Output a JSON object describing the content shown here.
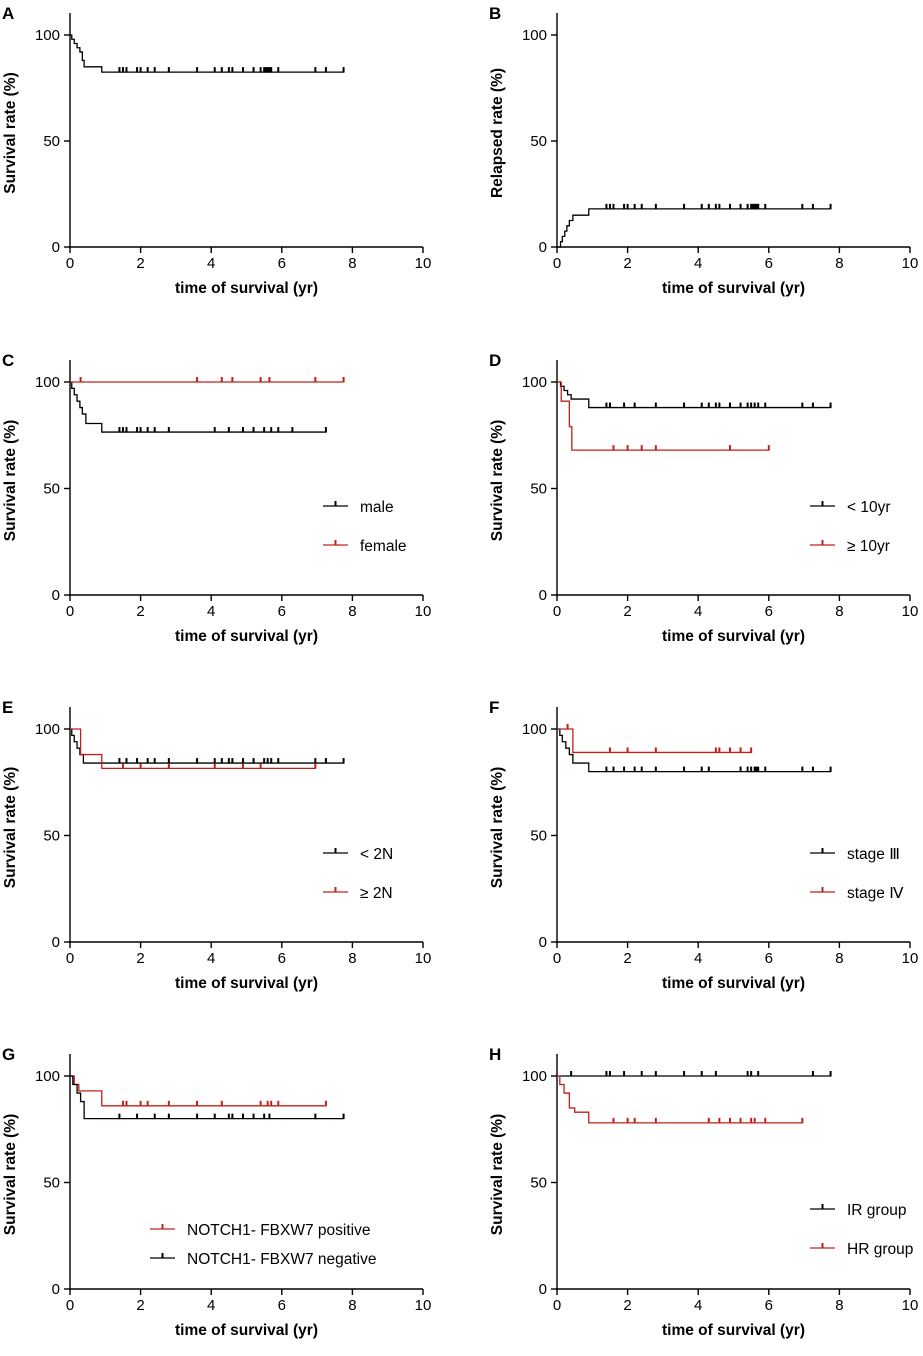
{
  "chart_data": [
    {
      "panel": "A",
      "type": "line",
      "title": "",
      "xlabel": "time of survival (yr)",
      "ylabel": "Survival rate (%)",
      "xlim": [
        0,
        10
      ],
      "ylim": [
        0,
        100
      ],
      "xticks": [
        0,
        2,
        4,
        6,
        8,
        10
      ],
      "yticks": [
        0,
        50,
        100
      ],
      "series": [
        {
          "name": "all",
          "color": "#000000",
          "steps": [
            [
              0,
              100
            ],
            [
              0.05,
              98
            ],
            [
              0.12,
              96
            ],
            [
              0.2,
              94
            ],
            [
              0.28,
              92
            ],
            [
              0.35,
              88
            ],
            [
              0.4,
              85
            ],
            [
              0.9,
              82.5
            ]
          ],
          "end": 7.75,
          "censors": [
            1.4,
            1.5,
            1.6,
            1.9,
            2.0,
            2.2,
            2.4,
            2.8,
            3.6,
            4.1,
            4.3,
            4.5,
            4.6,
            4.9,
            5.2,
            5.4,
            5.5,
            5.55,
            5.6,
            5.65,
            5.7,
            5.9,
            6.95,
            7.25,
            7.75
          ]
        }
      ]
    },
    {
      "panel": "B",
      "type": "line",
      "title": "",
      "xlabel": "time of survival (yr)",
      "ylabel": "Relapsed rate (%)",
      "xlim": [
        0,
        10
      ],
      "ylim": [
        0,
        100
      ],
      "xticks": [
        0,
        2,
        4,
        6,
        8,
        10
      ],
      "yticks": [
        0,
        50,
        100
      ],
      "series": [
        {
          "name": "all",
          "color": "#000000",
          "steps": [
            [
              0,
              0
            ],
            [
              0.1,
              2.5
            ],
            [
              0.15,
              5
            ],
            [
              0.22,
              7.5
            ],
            [
              0.28,
              10
            ],
            [
              0.35,
              12.5
            ],
            [
              0.45,
              15
            ],
            [
              0.9,
              18
            ]
          ],
          "end": 7.75,
          "censors": [
            1.4,
            1.5,
            1.6,
            1.9,
            2.0,
            2.2,
            2.4,
            2.8,
            3.6,
            4.1,
            4.3,
            4.5,
            4.6,
            4.9,
            5.2,
            5.4,
            5.5,
            5.55,
            5.6,
            5.65,
            5.7,
            5.9,
            6.95,
            7.25,
            7.75
          ]
        }
      ]
    },
    {
      "panel": "C",
      "type": "line",
      "title": "",
      "xlabel": "time of survival (yr)",
      "ylabel": "Survival rate (%)",
      "xlim": [
        0,
        10
      ],
      "ylim": [
        0,
        100
      ],
      "xticks": [
        0,
        2,
        4,
        6,
        8,
        10
      ],
      "yticks": [
        0,
        50,
        100
      ],
      "legend": [
        "male",
        "female"
      ],
      "legend_position": "bottom-right",
      "series": [
        {
          "name": "male",
          "color": "#000000",
          "steps": [
            [
              0,
              100
            ],
            [
              0.05,
              97
            ],
            [
              0.12,
              94
            ],
            [
              0.2,
              91
            ],
            [
              0.28,
              88
            ],
            [
              0.35,
              85
            ],
            [
              0.45,
              80.5
            ],
            [
              0.9,
              76.5
            ]
          ],
          "end": 7.25,
          "censors": [
            1.4,
            1.5,
            1.6,
            1.9,
            2.0,
            2.2,
            2.4,
            2.8,
            4.1,
            4.5,
            4.9,
            5.2,
            5.5,
            5.7,
            5.9,
            6.3,
            7.25
          ]
        },
        {
          "name": "female",
          "color": "#c0201c",
          "steps": [
            [
              0,
              100
            ]
          ],
          "end": 7.75,
          "censors": [
            0.3,
            3.6,
            4.3,
            4.6,
            5.4,
            5.65,
            6.95,
            7.75
          ]
        }
      ]
    },
    {
      "panel": "D",
      "type": "line",
      "title": "",
      "xlabel": "time of survival (yr)",
      "ylabel": "Survival rate (%)",
      "xlim": [
        0,
        10
      ],
      "ylim": [
        0,
        100
      ],
      "xticks": [
        0,
        2,
        4,
        6,
        8,
        10
      ],
      "yticks": [
        0,
        50,
        100
      ],
      "legend": [
        "< 10yr",
        "≥ 10yr"
      ],
      "legend_position": "bottom-right",
      "series": [
        {
          "name": "< 10yr",
          "color": "#000000",
          "steps": [
            [
              0,
              100
            ],
            [
              0.1,
              98
            ],
            [
              0.2,
              96
            ],
            [
              0.3,
              94
            ],
            [
              0.4,
              92
            ],
            [
              0.9,
              88
            ]
          ],
          "end": 7.75,
          "censors": [
            1.4,
            1.5,
            1.9,
            2.2,
            2.8,
            3.6,
            4.1,
            4.3,
            4.5,
            4.6,
            4.9,
            5.2,
            5.4,
            5.5,
            5.6,
            5.7,
            5.9,
            6.95,
            7.25,
            7.75
          ]
        },
        {
          "name": "≥ 10yr",
          "color": "#c0201c",
          "steps": [
            [
              0,
              100
            ],
            [
              0.12,
              91
            ],
            [
              0.35,
              79
            ],
            [
              0.42,
              68
            ]
          ],
          "end": 6.0,
          "censors": [
            1.6,
            2.0,
            2.4,
            2.8,
            4.9,
            6.0
          ]
        }
      ]
    },
    {
      "panel": "E",
      "type": "line",
      "title": "",
      "xlabel": "time of survival (yr)",
      "ylabel": "Survival rate (%)",
      "xlim": [
        0,
        10
      ],
      "ylim": [
        0,
        100
      ],
      "xticks": [
        0,
        2,
        4,
        6,
        8,
        10
      ],
      "yticks": [
        0,
        50,
        100
      ],
      "legend": [
        "< 2N",
        "≥ 2N"
      ],
      "legend_position": "bottom-right",
      "series": [
        {
          "name": "< 2N",
          "color": "#000000",
          "steps": [
            [
              0,
              100
            ],
            [
              0.05,
              97
            ],
            [
              0.12,
              94
            ],
            [
              0.2,
              91
            ],
            [
              0.28,
              88
            ],
            [
              0.38,
              84
            ]
          ],
          "end": 7.75,
          "censors": [
            1.4,
            1.6,
            1.9,
            2.2,
            2.4,
            2.8,
            3.6,
            4.1,
            4.3,
            4.5,
            4.6,
            4.9,
            5.2,
            5.5,
            5.6,
            5.7,
            5.9,
            6.95,
            7.25,
            7.75
          ]
        },
        {
          "name": "≥ 2N",
          "color": "#c0201c",
          "steps": [
            [
              0,
              100
            ],
            [
              0.3,
              88
            ],
            [
              0.9,
              81.5
            ]
          ],
          "end": 6.95,
          "censors": [
            1.5,
            2.0,
            2.8,
            4.1,
            4.9,
            5.4,
            6.95
          ]
        }
      ]
    },
    {
      "panel": "F",
      "type": "line",
      "title": "",
      "xlabel": "time of survival (yr)",
      "ylabel": "Survival rate (%)",
      "xlim": [
        0,
        10
      ],
      "ylim": [
        0,
        100
      ],
      "xticks": [
        0,
        2,
        4,
        6,
        8,
        10
      ],
      "yticks": [
        0,
        50,
        100
      ],
      "legend": [
        "stage Ⅲ",
        "stage Ⅳ"
      ],
      "legend_position": "bottom-right",
      "series": [
        {
          "name": "stage Ⅲ",
          "color": "#000000",
          "steps": [
            [
              0,
              100
            ],
            [
              0.08,
              97
            ],
            [
              0.15,
              94
            ],
            [
              0.25,
              91
            ],
            [
              0.35,
              88
            ],
            [
              0.45,
              84
            ],
            [
              0.9,
              80
            ]
          ],
          "end": 7.75,
          "censors": [
            1.4,
            1.6,
            1.9,
            2.2,
            2.4,
            2.8,
            3.6,
            4.1,
            4.3,
            5.2,
            5.4,
            5.5,
            5.6,
            5.65,
            5.7,
            5.9,
            6.95,
            7.25,
            7.75
          ]
        },
        {
          "name": "stage Ⅳ",
          "color": "#c0201c",
          "steps": [
            [
              0,
              100
            ],
            [
              0.45,
              89
            ]
          ],
          "end": 5.5,
          "censors": [
            0.3,
            1.5,
            2.0,
            2.8,
            4.5,
            4.6,
            4.9,
            5.2,
            5.5
          ]
        }
      ]
    },
    {
      "panel": "G",
      "type": "line",
      "title": "",
      "xlabel": "time of survival (yr)",
      "ylabel": "Survival rate (%)",
      "xlim": [
        0,
        10
      ],
      "ylim": [
        0,
        100
      ],
      "xticks": [
        0,
        2,
        4,
        6,
        8,
        10
      ],
      "yticks": [
        0,
        50,
        100
      ],
      "legend": [
        "NOTCH1- FBXW7 positive",
        "NOTCH1- FBXW7 negative"
      ],
      "legend_position": "bottom-right",
      "series": [
        {
          "name": "NOTCH1- FBXW7 positive",
          "color": "#c0201c",
          "steps": [
            [
              0,
              100
            ],
            [
              0.12,
              96
            ],
            [
              0.25,
              93
            ],
            [
              0.9,
              86
            ]
          ],
          "end": 7.25,
          "censors": [
            1.5,
            1.6,
            2.0,
            2.2,
            2.8,
            3.6,
            4.3,
            5.4,
            5.6,
            5.7,
            5.9,
            7.25
          ]
        },
        {
          "name": "NOTCH1- FBXW7 negative",
          "color": "#000000",
          "steps": [
            [
              0,
              100
            ],
            [
              0.08,
              96
            ],
            [
              0.2,
              92
            ],
            [
              0.3,
              88
            ],
            [
              0.4,
              80
            ]
          ],
          "end": 7.75,
          "censors": [
            1.4,
            1.9,
            2.4,
            2.8,
            3.6,
            4.1,
            4.5,
            4.6,
            4.9,
            5.2,
            5.5,
            5.65,
            6.95,
            7.75
          ]
        }
      ]
    },
    {
      "panel": "H",
      "type": "line",
      "title": "",
      "xlabel": "time of survival (yr)",
      "ylabel": "Survival rate (%)",
      "xlim": [
        0,
        10
      ],
      "ylim": [
        0,
        100
      ],
      "xticks": [
        0,
        2,
        4,
        6,
        8,
        10
      ],
      "yticks": [
        0,
        50,
        100
      ],
      "legend": [
        "IR  group",
        "HR group"
      ],
      "legend_position": "bottom-right",
      "series": [
        {
          "name": "IR  group",
          "color": "#000000",
          "steps": [
            [
              0,
              100
            ]
          ],
          "end": 7.75,
          "censors": [
            0.4,
            1.4,
            1.5,
            1.9,
            2.4,
            2.8,
            3.6,
            4.1,
            4.5,
            5.4,
            5.5,
            5.7,
            7.25,
            7.75
          ]
        },
        {
          "name": "HR group",
          "color": "#c0201c",
          "steps": [
            [
              0,
              100
            ],
            [
              0.08,
              96
            ],
            [
              0.2,
              92
            ],
            [
              0.35,
              85
            ],
            [
              0.5,
              83
            ],
            [
              0.9,
              78
            ]
          ],
          "end": 6.95,
          "censors": [
            1.6,
            2.0,
            2.2,
            2.8,
            4.3,
            4.6,
            4.9,
            5.2,
            5.5,
            5.6,
            5.9,
            6.95
          ]
        }
      ]
    }
  ]
}
